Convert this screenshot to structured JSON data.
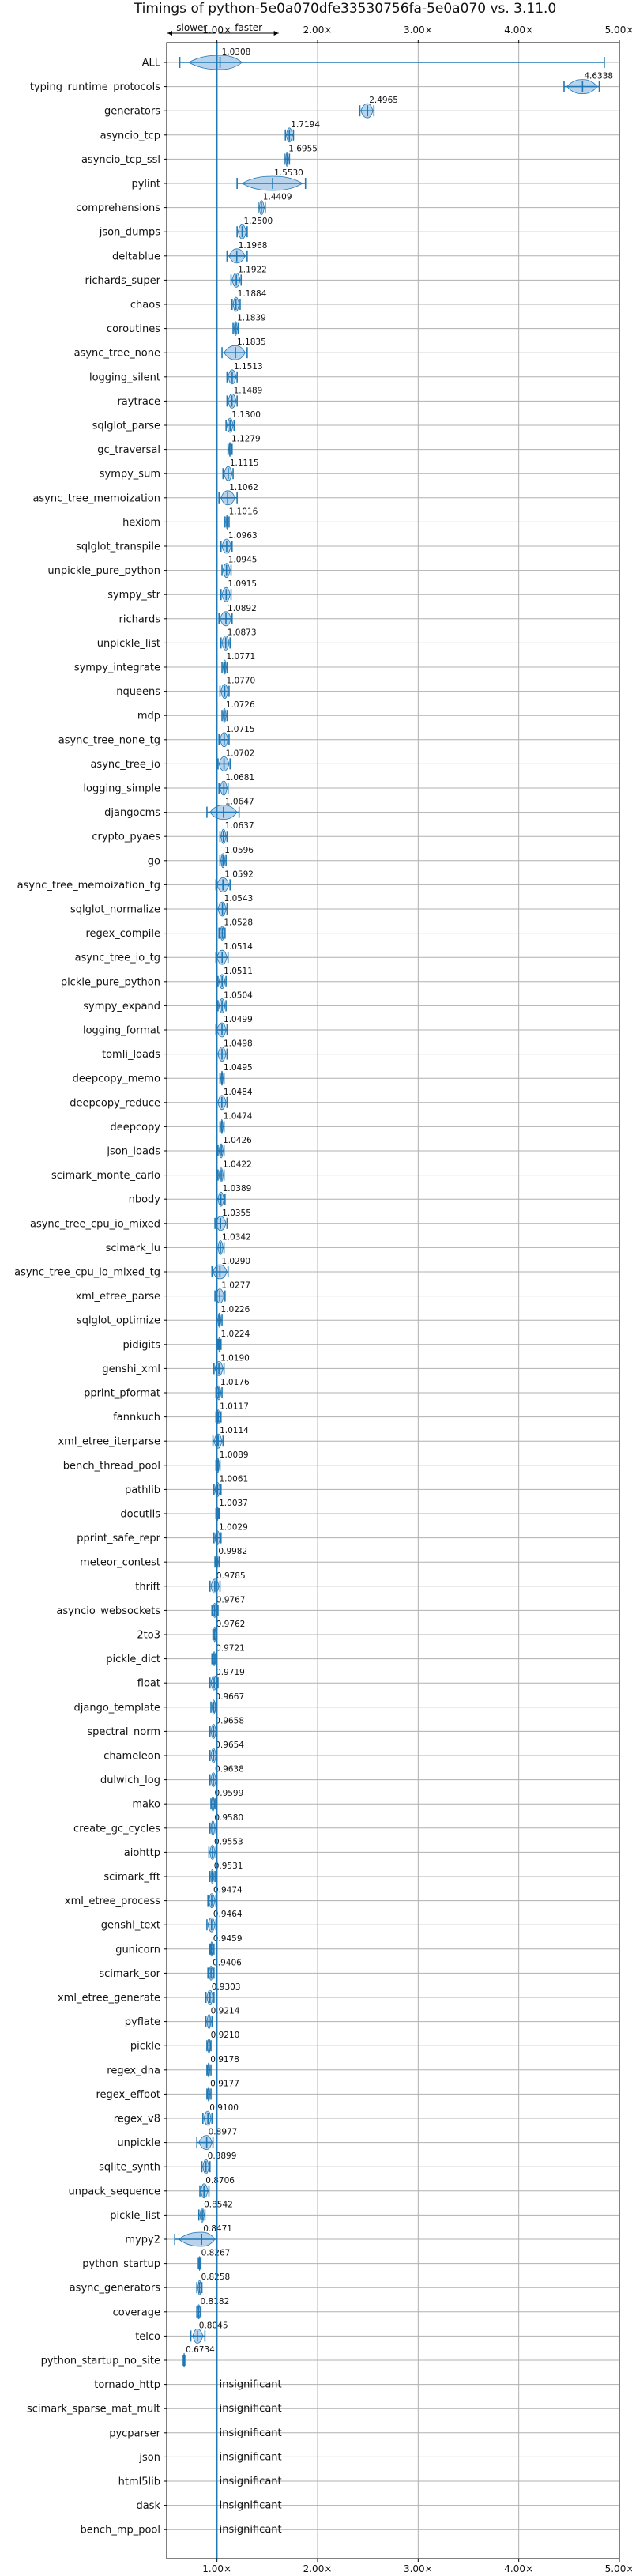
{
  "chart_data": {
    "type": "violin",
    "title": "Timings of python-5e0a070dfe33530756fa-5e0a070 vs. 3.11.0",
    "direction_slower": "slower",
    "direction_faster": "faster",
    "xlim": [
      0.5,
      5.0
    ],
    "xticks": [
      1.0,
      2.0,
      3.0,
      4.0,
      5.0
    ],
    "xtick_labels": [
      "1.00×",
      "2.00×",
      "3.00×",
      "4.00×",
      "5.00×"
    ],
    "grid": true,
    "colors": {
      "violin": "#a6c8e6",
      "line": "#1f77b4",
      "median": "#c0392b",
      "grid": "#b0b0b0"
    },
    "insignificant_label": "insignificant",
    "benchmarks": [
      {
        "name": "ALL",
        "value": 1.0308,
        "label": "1.0308",
        "lo": 0.63,
        "hi": 4.85,
        "vlo": 0.72,
        "vhi": 1.25
      },
      {
        "name": "typing_runtime_protocols",
        "value": 4.6338,
        "label": "4.6338",
        "lo": 4.45,
        "hi": 4.8,
        "vlo": 4.48,
        "vhi": 4.78
      },
      {
        "name": "generators",
        "value": 2.4965,
        "label": "2.4965",
        "lo": 2.42,
        "hi": 2.56,
        "vlo": 2.43,
        "vhi": 2.55
      },
      {
        "name": "asyncio_tcp",
        "value": 1.7194,
        "label": "1.7194",
        "lo": 1.68,
        "hi": 1.76,
        "vlo": 1.69,
        "vhi": 1.75
      },
      {
        "name": "asyncio_tcp_ssl",
        "value": 1.6955,
        "label": "1.6955",
        "lo": 1.67,
        "hi": 1.72,
        "vlo": 1.68,
        "vhi": 1.71
      },
      {
        "name": "pylint",
        "value": 1.553,
        "label": "1.5530",
        "lo": 1.2,
        "hi": 1.88,
        "vlo": 1.25,
        "vhi": 1.85
      },
      {
        "name": "comprehensions",
        "value": 1.4409,
        "label": "1.4409",
        "lo": 1.41,
        "hi": 1.48,
        "vlo": 1.42,
        "vhi": 1.47
      },
      {
        "name": "json_dumps",
        "value": 1.25,
        "label": "1.2500",
        "lo": 1.2,
        "hi": 1.3,
        "vlo": 1.21,
        "vhi": 1.29
      },
      {
        "name": "deltablue",
        "value": 1.1968,
        "label": "1.1968",
        "lo": 1.1,
        "hi": 1.3,
        "vlo": 1.12,
        "vhi": 1.28
      },
      {
        "name": "richards_super",
        "value": 1.1922,
        "label": "1.1922",
        "lo": 1.14,
        "hi": 1.24,
        "vlo": 1.15,
        "vhi": 1.23
      },
      {
        "name": "chaos",
        "value": 1.1884,
        "label": "1.1884",
        "lo": 1.15,
        "hi": 1.23,
        "vlo": 1.16,
        "vhi": 1.22
      },
      {
        "name": "coroutines",
        "value": 1.1839,
        "label": "1.1839",
        "lo": 1.16,
        "hi": 1.21,
        "vlo": 1.17,
        "vhi": 1.2
      },
      {
        "name": "async_tree_none",
        "value": 1.1835,
        "label": "1.1835",
        "lo": 1.05,
        "hi": 1.3,
        "vlo": 1.07,
        "vhi": 1.28
      },
      {
        "name": "logging_silent",
        "value": 1.1513,
        "label": "1.1513",
        "lo": 1.1,
        "hi": 1.2,
        "vlo": 1.11,
        "vhi": 1.19
      },
      {
        "name": "raytrace",
        "value": 1.1489,
        "label": "1.1489",
        "lo": 1.1,
        "hi": 1.2,
        "vlo": 1.11,
        "vhi": 1.19
      },
      {
        "name": "sqlglot_parse",
        "value": 1.13,
        "label": "1.1300",
        "lo": 1.09,
        "hi": 1.17,
        "vlo": 1.1,
        "vhi": 1.16
      },
      {
        "name": "gc_traversal",
        "value": 1.1279,
        "label": "1.1279",
        "lo": 1.11,
        "hi": 1.15,
        "vlo": 1.12,
        "vhi": 1.14
      },
      {
        "name": "sympy_sum",
        "value": 1.1115,
        "label": "1.1115",
        "lo": 1.06,
        "hi": 1.16,
        "vlo": 1.07,
        "vhi": 1.15
      },
      {
        "name": "async_tree_memoization",
        "value": 1.1062,
        "label": "1.1062",
        "lo": 1.02,
        "hi": 1.2,
        "vlo": 1.04,
        "vhi": 1.18
      },
      {
        "name": "hexiom",
        "value": 1.1016,
        "label": "1.1016",
        "lo": 1.08,
        "hi": 1.12,
        "vlo": 1.09,
        "vhi": 1.11
      },
      {
        "name": "sqlglot_transpile",
        "value": 1.0963,
        "label": "1.0963",
        "lo": 1.04,
        "hi": 1.15,
        "vlo": 1.05,
        "vhi": 1.14
      },
      {
        "name": "unpickle_pure_python",
        "value": 1.0945,
        "label": "1.0945",
        "lo": 1.05,
        "hi": 1.14,
        "vlo": 1.06,
        "vhi": 1.13
      },
      {
        "name": "sympy_str",
        "value": 1.0915,
        "label": "1.0915",
        "lo": 1.04,
        "hi": 1.14,
        "vlo": 1.05,
        "vhi": 1.13
      },
      {
        "name": "richards",
        "value": 1.0892,
        "label": "1.0892",
        "lo": 1.02,
        "hi": 1.15,
        "vlo": 1.03,
        "vhi": 1.14
      },
      {
        "name": "unpickle_list",
        "value": 1.0873,
        "label": "1.0873",
        "lo": 1.04,
        "hi": 1.13,
        "vlo": 1.05,
        "vhi": 1.12
      },
      {
        "name": "sympy_integrate",
        "value": 1.0771,
        "label": "1.0771",
        "lo": 1.05,
        "hi": 1.1,
        "vlo": 1.06,
        "vhi": 1.09
      },
      {
        "name": "nqueens",
        "value": 1.077,
        "label": "1.0770",
        "lo": 1.03,
        "hi": 1.12,
        "vlo": 1.04,
        "vhi": 1.11
      },
      {
        "name": "mdp",
        "value": 1.0726,
        "label": "1.0726",
        "lo": 1.05,
        "hi": 1.1,
        "vlo": 1.06,
        "vhi": 1.09
      },
      {
        "name": "async_tree_none_tg",
        "value": 1.0715,
        "label": "1.0715",
        "lo": 1.02,
        "hi": 1.12,
        "vlo": 1.03,
        "vhi": 1.11
      },
      {
        "name": "async_tree_io",
        "value": 1.0702,
        "label": "1.0702",
        "lo": 1.01,
        "hi": 1.13,
        "vlo": 1.02,
        "vhi": 1.12
      },
      {
        "name": "logging_simple",
        "value": 1.0681,
        "label": "1.0681",
        "lo": 1.02,
        "hi": 1.11,
        "vlo": 1.03,
        "vhi": 1.1
      },
      {
        "name": "djangocms",
        "value": 1.0647,
        "label": "1.0647",
        "lo": 0.9,
        "hi": 1.22,
        "vlo": 0.93,
        "vhi": 1.2
      },
      {
        "name": "crypto_pyaes",
        "value": 1.0637,
        "label": "1.0637",
        "lo": 1.03,
        "hi": 1.1,
        "vlo": 1.04,
        "vhi": 1.09
      },
      {
        "name": "go",
        "value": 1.0596,
        "label": "1.0596",
        "lo": 1.03,
        "hi": 1.09,
        "vlo": 1.04,
        "vhi": 1.08
      },
      {
        "name": "async_tree_memoization_tg",
        "value": 1.0592,
        "label": "1.0592",
        "lo": 0.99,
        "hi": 1.13,
        "vlo": 1.0,
        "vhi": 1.12
      },
      {
        "name": "sqlglot_normalize",
        "value": 1.0543,
        "label": "1.0543",
        "lo": 1.0,
        "hi": 1.1,
        "vlo": 1.01,
        "vhi": 1.09
      },
      {
        "name": "regex_compile",
        "value": 1.0528,
        "label": "1.0528",
        "lo": 1.02,
        "hi": 1.08,
        "vlo": 1.03,
        "vhi": 1.07
      },
      {
        "name": "async_tree_io_tg",
        "value": 1.0514,
        "label": "1.0514",
        "lo": 0.99,
        "hi": 1.11,
        "vlo": 1.0,
        "vhi": 1.1
      },
      {
        "name": "pickle_pure_python",
        "value": 1.0511,
        "label": "1.0511",
        "lo": 1.01,
        "hi": 1.09,
        "vlo": 1.02,
        "vhi": 1.08
      },
      {
        "name": "sympy_expand",
        "value": 1.0504,
        "label": "1.0504",
        "lo": 1.01,
        "hi": 1.09,
        "vlo": 1.02,
        "vhi": 1.08
      },
      {
        "name": "logging_format",
        "value": 1.0499,
        "label": "1.0499",
        "lo": 0.99,
        "hi": 1.1,
        "vlo": 1.0,
        "vhi": 1.09
      },
      {
        "name": "tomli_loads",
        "value": 1.0498,
        "label": "1.0498",
        "lo": 1.0,
        "hi": 1.1,
        "vlo": 1.01,
        "vhi": 1.09
      },
      {
        "name": "deepcopy_memo",
        "value": 1.0495,
        "label": "1.0495",
        "lo": 1.03,
        "hi": 1.07,
        "vlo": 1.04,
        "vhi": 1.06
      },
      {
        "name": "deepcopy_reduce",
        "value": 1.0484,
        "label": "1.0484",
        "lo": 1.0,
        "hi": 1.1,
        "vlo": 1.01,
        "vhi": 1.09
      },
      {
        "name": "deepcopy",
        "value": 1.0474,
        "label": "1.0474",
        "lo": 1.03,
        "hi": 1.07,
        "vlo": 1.04,
        "vhi": 1.06
      },
      {
        "name": "json_loads",
        "value": 1.0426,
        "label": "1.0426",
        "lo": 1.01,
        "hi": 1.07,
        "vlo": 1.02,
        "vhi": 1.06
      },
      {
        "name": "scimark_monte_carlo",
        "value": 1.0422,
        "label": "1.0422",
        "lo": 1.01,
        "hi": 1.07,
        "vlo": 1.02,
        "vhi": 1.06
      },
      {
        "name": "nbody",
        "value": 1.0389,
        "label": "1.0389",
        "lo": 1.0,
        "hi": 1.08,
        "vlo": 1.01,
        "vhi": 1.07
      },
      {
        "name": "async_tree_cpu_io_mixed",
        "value": 1.0355,
        "label": "1.0355",
        "lo": 0.98,
        "hi": 1.1,
        "vlo": 0.99,
        "vhi": 1.09
      },
      {
        "name": "scimark_lu",
        "value": 1.0342,
        "label": "1.0342",
        "lo": 1.0,
        "hi": 1.07,
        "vlo": 1.01,
        "vhi": 1.06
      },
      {
        "name": "async_tree_cpu_io_mixed_tg",
        "value": 1.029,
        "label": "1.0290",
        "lo": 0.95,
        "hi": 1.11,
        "vlo": 0.96,
        "vhi": 1.1
      },
      {
        "name": "xml_etree_parse",
        "value": 1.0277,
        "label": "1.0277",
        "lo": 0.98,
        "hi": 1.08,
        "vlo": 0.99,
        "vhi": 1.07
      },
      {
        "name": "sqlglot_optimize",
        "value": 1.0226,
        "label": "1.0226",
        "lo": 1.0,
        "hi": 1.05,
        "vlo": 1.01,
        "vhi": 1.04
      },
      {
        "name": "pidigits",
        "value": 1.0224,
        "label": "1.0224",
        "lo": 1.01,
        "hi": 1.04,
        "vlo": 1.015,
        "vhi": 1.035
      },
      {
        "name": "genshi_xml",
        "value": 1.019,
        "label": "1.0190",
        "lo": 0.97,
        "hi": 1.07,
        "vlo": 0.98,
        "vhi": 1.06
      },
      {
        "name": "pprint_pformat",
        "value": 1.0176,
        "label": "1.0176",
        "lo": 0.99,
        "hi": 1.05,
        "vlo": 1.0,
        "vhi": 1.04
      },
      {
        "name": "fannkuch",
        "value": 1.0117,
        "label": "1.0117",
        "lo": 0.99,
        "hi": 1.04,
        "vlo": 1.0,
        "vhi": 1.03
      },
      {
        "name": "xml_etree_iterparse",
        "value": 1.0114,
        "label": "1.0114",
        "lo": 0.96,
        "hi": 1.06,
        "vlo": 0.97,
        "vhi": 1.05
      },
      {
        "name": "bench_thread_pool",
        "value": 1.0089,
        "label": "1.0089",
        "lo": 0.99,
        "hi": 1.03,
        "vlo": 1.0,
        "vhi": 1.02
      },
      {
        "name": "pathlib",
        "value": 1.0061,
        "label": "1.0061",
        "lo": 0.97,
        "hi": 1.04,
        "vlo": 0.98,
        "vhi": 1.03
      },
      {
        "name": "docutils",
        "value": 1.0037,
        "label": "1.0037",
        "lo": 0.99,
        "hi": 1.02,
        "vlo": 0.995,
        "vhi": 1.015
      },
      {
        "name": "pprint_safe_repr",
        "value": 1.0029,
        "label": "1.0029",
        "lo": 0.97,
        "hi": 1.04,
        "vlo": 0.98,
        "vhi": 1.03
      },
      {
        "name": "meteor_contest",
        "value": 0.9982,
        "label": "0.9982",
        "lo": 0.98,
        "hi": 1.02,
        "vlo": 0.985,
        "vhi": 1.01
      },
      {
        "name": "thrift",
        "value": 0.9785,
        "label": "0.9785",
        "lo": 0.93,
        "hi": 1.03,
        "vlo": 0.94,
        "vhi": 1.02
      },
      {
        "name": "asyncio_websockets",
        "value": 0.9767,
        "label": "0.9767",
        "lo": 0.95,
        "hi": 1.01,
        "vlo": 0.96,
        "vhi": 1.0
      },
      {
        "name": "2to3",
        "value": 0.9762,
        "label": "0.9762",
        "lo": 0.96,
        "hi": 0.995,
        "vlo": 0.965,
        "vhi": 0.99
      },
      {
        "name": "pickle_dict",
        "value": 0.9721,
        "label": "0.9721",
        "lo": 0.95,
        "hi": 0.99,
        "vlo": 0.96,
        "vhi": 0.985
      },
      {
        "name": "float",
        "value": 0.9719,
        "label": "0.9719",
        "lo": 0.93,
        "hi": 1.01,
        "vlo": 0.94,
        "vhi": 1.0
      },
      {
        "name": "django_template",
        "value": 0.9667,
        "label": "0.9667",
        "lo": 0.94,
        "hi": 0.99,
        "vlo": 0.95,
        "vhi": 0.985
      },
      {
        "name": "spectral_norm",
        "value": 0.9658,
        "label": "0.9658",
        "lo": 0.93,
        "hi": 1.0,
        "vlo": 0.94,
        "vhi": 0.99
      },
      {
        "name": "chameleon",
        "value": 0.9654,
        "label": "0.9654",
        "lo": 0.93,
        "hi": 1.0,
        "vlo": 0.94,
        "vhi": 0.99
      },
      {
        "name": "dulwich_log",
        "value": 0.9638,
        "label": "0.9638",
        "lo": 0.93,
        "hi": 1.0,
        "vlo": 0.94,
        "vhi": 0.99
      },
      {
        "name": "mako",
        "value": 0.9599,
        "label": "0.9599",
        "lo": 0.94,
        "hi": 0.98,
        "vlo": 0.945,
        "vhi": 0.975
      },
      {
        "name": "create_gc_cycles",
        "value": 0.958,
        "label": "0.9580",
        "lo": 0.93,
        "hi": 0.99,
        "vlo": 0.94,
        "vhi": 0.98
      },
      {
        "name": "aiohttp",
        "value": 0.9553,
        "label": "0.9553",
        "lo": 0.92,
        "hi": 0.99,
        "vlo": 0.93,
        "vhi": 0.98
      },
      {
        "name": "scimark_fft",
        "value": 0.9531,
        "label": "0.9531",
        "lo": 0.93,
        "hi": 0.98,
        "vlo": 0.94,
        "vhi": 0.97
      },
      {
        "name": "xml_etree_process",
        "value": 0.9474,
        "label": "0.9474",
        "lo": 0.91,
        "hi": 0.99,
        "vlo": 0.92,
        "vhi": 0.98
      },
      {
        "name": "genshi_text",
        "value": 0.9464,
        "label": "0.9464",
        "lo": 0.9,
        "hi": 0.99,
        "vlo": 0.91,
        "vhi": 0.98
      },
      {
        "name": "gunicorn",
        "value": 0.9459,
        "label": "0.9459",
        "lo": 0.93,
        "hi": 0.97,
        "vlo": 0.935,
        "vhi": 0.96
      },
      {
        "name": "scimark_sor",
        "value": 0.9406,
        "label": "0.9406",
        "lo": 0.91,
        "hi": 0.97,
        "vlo": 0.92,
        "vhi": 0.96
      },
      {
        "name": "xml_etree_generate",
        "value": 0.9303,
        "label": "0.9303",
        "lo": 0.89,
        "hi": 0.97,
        "vlo": 0.9,
        "vhi": 0.96
      },
      {
        "name": "pyflate",
        "value": 0.9214,
        "label": "0.9214",
        "lo": 0.89,
        "hi": 0.95,
        "vlo": 0.9,
        "vhi": 0.94
      },
      {
        "name": "pickle",
        "value": 0.921,
        "label": "0.9210",
        "lo": 0.9,
        "hi": 0.94,
        "vlo": 0.905,
        "vhi": 0.935
      },
      {
        "name": "regex_dna",
        "value": 0.9178,
        "label": "0.9178",
        "lo": 0.9,
        "hi": 0.94,
        "vlo": 0.905,
        "vhi": 0.93
      },
      {
        "name": "regex_effbot",
        "value": 0.9177,
        "label": "0.9177",
        "lo": 0.9,
        "hi": 0.94,
        "vlo": 0.905,
        "vhi": 0.93
      },
      {
        "name": "regex_v8",
        "value": 0.91,
        "label": "0.9100",
        "lo": 0.86,
        "hi": 0.95,
        "vlo": 0.87,
        "vhi": 0.94
      },
      {
        "name": "unpickle",
        "value": 0.8977,
        "label": "0.8977",
        "lo": 0.8,
        "hi": 0.96,
        "vlo": 0.82,
        "vhi": 0.95
      },
      {
        "name": "sqlite_synth",
        "value": 0.8899,
        "label": "0.8899",
        "lo": 0.85,
        "hi": 0.93,
        "vlo": 0.86,
        "vhi": 0.92
      },
      {
        "name": "unpack_sequence",
        "value": 0.8706,
        "label": "0.8706",
        "lo": 0.83,
        "hi": 0.92,
        "vlo": 0.84,
        "vhi": 0.91
      },
      {
        "name": "pickle_list",
        "value": 0.8542,
        "label": "0.8542",
        "lo": 0.82,
        "hi": 0.88,
        "vlo": 0.83,
        "vhi": 0.87
      },
      {
        "name": "mypy2",
        "value": 0.8471,
        "label": "0.8471",
        "lo": 0.58,
        "hi": 1.0,
        "vlo": 0.62,
        "vhi": 0.98
      },
      {
        "name": "python_startup",
        "value": 0.8267,
        "label": "0.8267",
        "lo": 0.815,
        "hi": 0.84,
        "vlo": 0.82,
        "vhi": 0.835
      },
      {
        "name": "async_generators",
        "value": 0.8258,
        "label": "0.8258",
        "lo": 0.8,
        "hi": 0.85,
        "vlo": 0.81,
        "vhi": 0.845
      },
      {
        "name": "coverage",
        "value": 0.8182,
        "label": "0.8182",
        "lo": 0.8,
        "hi": 0.84,
        "vlo": 0.805,
        "vhi": 0.835
      },
      {
        "name": "telco",
        "value": 0.8045,
        "label": "0.8045",
        "lo": 0.74,
        "hi": 0.88,
        "vlo": 0.76,
        "vhi": 0.86
      },
      {
        "name": "python_startup_no_site",
        "value": 0.6734,
        "label": "0.6734",
        "lo": 0.665,
        "hi": 0.68,
        "vlo": 0.668,
        "vhi": 0.678
      },
      {
        "name": "tornado_http",
        "value": null,
        "label": "insignificant"
      },
      {
        "name": "scimark_sparse_mat_mult",
        "value": null,
        "label": "insignificant"
      },
      {
        "name": "pycparser",
        "value": null,
        "label": "insignificant"
      },
      {
        "name": "json",
        "value": null,
        "label": "insignificant"
      },
      {
        "name": "html5lib",
        "value": null,
        "label": "insignificant"
      },
      {
        "name": "dask",
        "value": null,
        "label": "insignificant"
      },
      {
        "name": "bench_mp_pool",
        "value": null,
        "label": "insignificant"
      }
    ]
  }
}
